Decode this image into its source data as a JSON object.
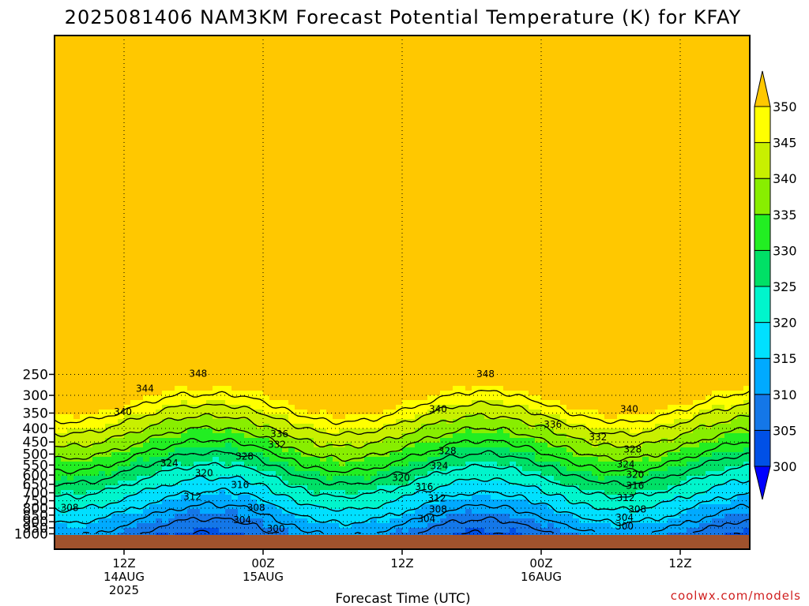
{
  "chart_data": {
    "type": "heatmap",
    "title": "2025081406 NAM3KM Forecast Potential Temperature (K) for KFAY",
    "xlabel": "Forecast Time (UTC)",
    "ylabel": "",
    "credit": "coolwx.com/models",
    "y_axis": {
      "scale": "log-pressure",
      "range": [
        1000,
        200
      ],
      "ticks": [
        250,
        300,
        350,
        400,
        450,
        500,
        550,
        600,
        650,
        700,
        750,
        800,
        850,
        900,
        950,
        1000
      ]
    },
    "x_axis": {
      "range_hours": [
        0,
        60
      ],
      "ticks": [
        {
          "hour": 6,
          "lines": [
            "12Z",
            "14AUG",
            "2025"
          ]
        },
        {
          "hour": 18,
          "lines": [
            "00Z",
            "15AUG"
          ]
        },
        {
          "hour": 30,
          "lines": [
            "12Z"
          ]
        },
        {
          "hour": 42,
          "lines": [
            "00Z",
            "16AUG"
          ]
        },
        {
          "hour": 54,
          "lines": [
            "12Z"
          ]
        }
      ]
    },
    "grid": "dotted",
    "colorbar": {
      "levels": [
        300,
        305,
        310,
        315,
        320,
        325,
        330,
        335,
        340,
        345,
        350
      ],
      "colors": [
        "#0000ff",
        "#0050e6",
        "#1477e8",
        "#00aaff",
        "#00e0ff",
        "#00f5cc",
        "#00e066",
        "#22ee22",
        "#88ee00",
        "#c8f000",
        "#ffff00",
        "#ffc800"
      ],
      "extend": "both"
    },
    "contour_levels": [
      300,
      304,
      308,
      312,
      316,
      320,
      324,
      328,
      332,
      336,
      340,
      344,
      348
    ],
    "contour_labels": [
      {
        "value": 348,
        "text": "348",
        "hour": 12.4,
        "p": 248
      },
      {
        "value": 348,
        "text": "348",
        "hour": 37.2,
        "p": 249
      },
      {
        "value": 344,
        "text": "344",
        "hour": 7.8,
        "p": 283
      },
      {
        "value": 340,
        "text": "340",
        "hour": 5.9,
        "p": 347
      },
      {
        "value": 340,
        "text": "340",
        "hour": 33.1,
        "p": 338
      },
      {
        "value": 340,
        "text": "340",
        "hour": 49.6,
        "p": 338
      },
      {
        "value": 336,
        "text": "336",
        "hour": 19.4,
        "p": 420
      },
      {
        "value": 336,
        "text": "336",
        "hour": 43.0,
        "p": 386
      },
      {
        "value": 332,
        "text": "332",
        "hour": 19.2,
        "p": 460
      },
      {
        "value": 332,
        "text": "332",
        "hour": 46.9,
        "p": 432
      },
      {
        "value": 328,
        "text": "328",
        "hour": 16.4,
        "p": 511
      },
      {
        "value": 328,
        "text": "328",
        "hour": 33.9,
        "p": 486
      },
      {
        "value": 328,
        "text": "328",
        "hour": 49.9,
        "p": 480
      },
      {
        "value": 324,
        "text": "324",
        "hour": 9.9,
        "p": 542
      },
      {
        "value": 324,
        "text": "324",
        "hour": 33.2,
        "p": 554
      },
      {
        "value": 324,
        "text": "324",
        "hour": 49.3,
        "p": 546
      },
      {
        "value": 320,
        "text": "320",
        "hour": 12.9,
        "p": 590
      },
      {
        "value": 320,
        "text": "320",
        "hour": 29.9,
        "p": 614
      },
      {
        "value": 320,
        "text": "320",
        "hour": 50.1,
        "p": 597
      },
      {
        "value": 316,
        "text": "316",
        "hour": 16.0,
        "p": 653
      },
      {
        "value": 316,
        "text": "316",
        "hour": 31.9,
        "p": 664
      },
      {
        "value": 316,
        "text": "316",
        "hour": 50.1,
        "p": 657
      },
      {
        "value": 312,
        "text": "312",
        "hour": 11.9,
        "p": 724
      },
      {
        "value": 312,
        "text": "312",
        "hour": 33.0,
        "p": 735
      },
      {
        "value": 312,
        "text": "312",
        "hour": 49.3,
        "p": 731
      },
      {
        "value": 308,
        "text": "308",
        "hour": 1.3,
        "p": 798
      },
      {
        "value": 308,
        "text": "308",
        "hour": 17.4,
        "p": 798
      },
      {
        "value": 308,
        "text": "308",
        "hour": 33.1,
        "p": 808
      },
      {
        "value": 308,
        "text": "308",
        "hour": 50.3,
        "p": 808
      },
      {
        "value": 304,
        "text": "304",
        "hour": 16.2,
        "p": 888
      },
      {
        "value": 304,
        "text": "304",
        "hour": 32.1,
        "p": 877
      },
      {
        "value": 304,
        "text": "304",
        "hour": 49.2,
        "p": 868
      },
      {
        "value": 300,
        "text": "300",
        "hour": 19.1,
        "p": 955
      },
      {
        "value": 300,
        "text": "300",
        "hour": 49.2,
        "p": 937
      }
    ]
  }
}
